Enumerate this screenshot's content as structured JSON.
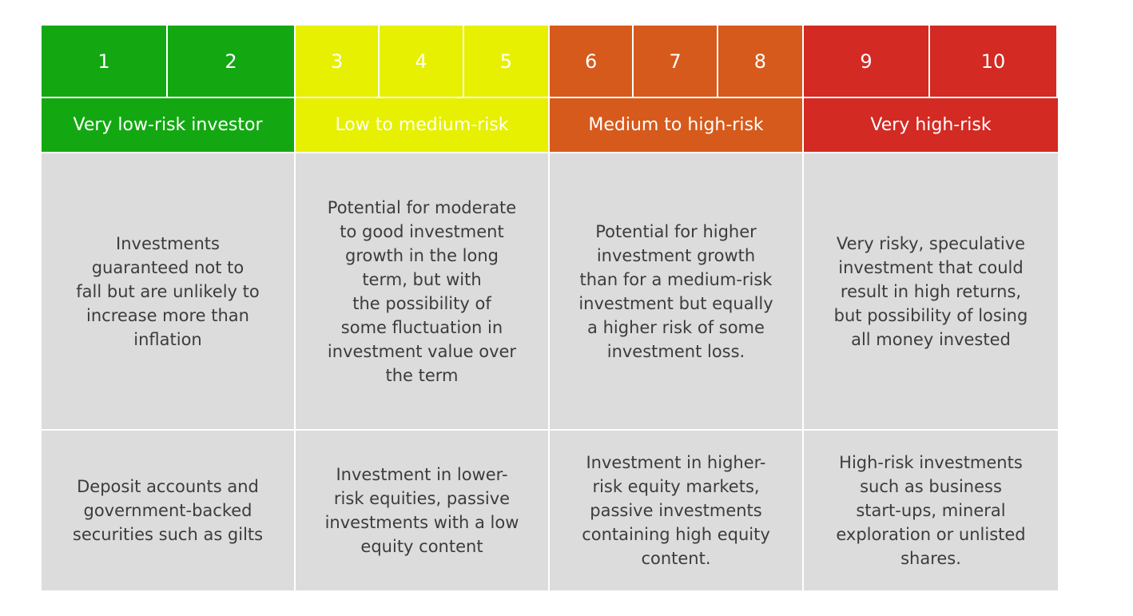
{
  "colors": {
    "very_low": "#13a812",
    "low_medium": "#e6f000",
    "medium_high": "#d65a1c",
    "very_high": "#d32a24",
    "body_bg": "#dcdcdc",
    "body_text": "#3c3c3c"
  },
  "groups": [
    {
      "numbers": [
        "1",
        "2"
      ],
      "label": "Very low-risk investor",
      "description": "Investments\nguaranteed not to\nfall but are unlikely to\nincrease more than\ninflation",
      "example": "Deposit accounts and\ngovernment-backed\nsecurities such as gilts"
    },
    {
      "numbers": [
        "3",
        "4",
        "5"
      ],
      "label": "Low to medium-risk",
      "description": "Potential for moderate\nto good investment\ngrowth in the long\nterm, but with\nthe possibility of\nsome fluctuation in\ninvestment value over\nthe term",
      "example": "Investment in lower-\nrisk equities, passive\ninvestments with a low\nequity content"
    },
    {
      "numbers": [
        "6",
        "7",
        "8"
      ],
      "label": "Medium to high-risk",
      "description": "Potential for higher\ninvestment growth\nthan for a medium-risk\ninvestment but equally\na higher risk of some\ninvestment loss.",
      "example": "Investment in higher-\nrisk equity markets,\npassive investments\ncontaining high equity\ncontent."
    },
    {
      "numbers": [
        "9",
        "10"
      ],
      "label": "Very high-risk",
      "description": "Very risky, speculative\ninvestment that could\nresult in high returns,\nbut possibility of losing\nall money invested",
      "example": "High-risk investments\nsuch as business\nstart-ups, mineral\nexploration or unlisted\nshares."
    }
  ]
}
